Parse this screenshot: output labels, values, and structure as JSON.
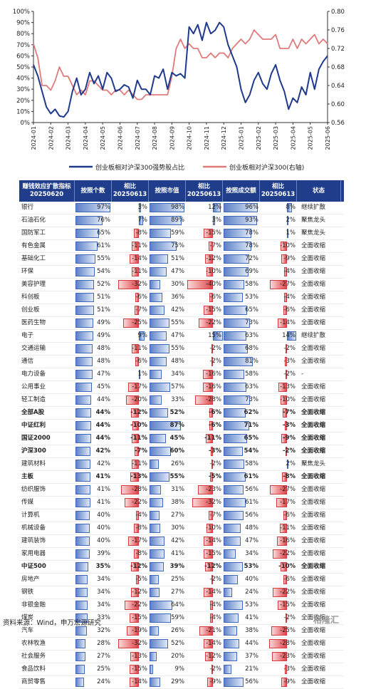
{
  "chart_data": {
    "type": "line",
    "x_tick_labels": [
      "2024-01",
      "2024-02",
      "2024-03",
      "2024-04",
      "2024-05",
      "2024-06",
      "2024-07",
      "2024-08",
      "2024-09",
      "2024-10",
      "2024-11",
      "2024-12",
      "2025-01",
      "2025-02",
      "2025-03",
      "2025-04",
      "2025-05",
      "2025-06"
    ],
    "left_axis": {
      "ticks": [
        "0%",
        "10%",
        "20%",
        "30%",
        "40%",
        "50%",
        "60%",
        "70%",
        "80%",
        "90%",
        "100%"
      ],
      "ylim": [
        0,
        100
      ]
    },
    "right_axis": {
      "ticks": [
        "0.56",
        "0.60",
        "0.64",
        "0.68",
        "0.72",
        "0.76",
        "0.80"
      ],
      "ylim": [
        0.56,
        0.8
      ]
    },
    "series": [
      {
        "name": "创业板相对沪深300强势股占比",
        "axis": "left",
        "color": "#1f3a8c",
        "x": [
          0,
          0.25,
          0.5,
          0.75,
          1,
          1.25,
          1.5,
          1.75,
          2,
          2.25,
          2.5,
          2.75,
          3,
          3.25,
          3.5,
          3.75,
          4,
          4.25,
          4.5,
          4.75,
          5,
          5.25,
          5.5,
          5.75,
          6,
          6.25,
          6.5,
          6.75,
          7,
          7.25,
          7.5,
          7.75,
          8,
          8.25,
          8.5,
          8.75,
          9,
          9.25,
          9.5,
          9.75,
          10,
          10.25,
          10.5,
          10.75,
          11,
          11.25,
          11.5,
          11.75,
          12,
          12.25,
          12.5,
          12.75,
          13,
          13.25,
          13.5,
          13.75,
          14,
          14.25,
          14.5,
          14.75,
          15,
          15.25,
          15.5,
          15.75,
          16,
          16.25,
          16.5,
          16.75,
          17
        ],
        "y": [
          52,
          42,
          28,
          14,
          8,
          12,
          6,
          5,
          10,
          28,
          40,
          25,
          30,
          45,
          35,
          42,
          30,
          45,
          40,
          28,
          30,
          34,
          32,
          22,
          38,
          30,
          30,
          25,
          42,
          40,
          48,
          30,
          45,
          42,
          44,
          40,
          86,
          80,
          88,
          74,
          90,
          80,
          83,
          90,
          86,
          70,
          60,
          50,
          30,
          18,
          25,
          38,
          45,
          35,
          30,
          44,
          52,
          38,
          28,
          12,
          22,
          18,
          32,
          25,
          45,
          30,
          48,
          55,
          60
        ]
      },
      {
        "name": "创业板相对沪深300(右轴)",
        "axis": "right",
        "color": "#e07b7b",
        "x": [
          0,
          0.25,
          0.5,
          0.75,
          1,
          1.25,
          1.5,
          1.75,
          2,
          2.25,
          2.5,
          2.75,
          3,
          3.25,
          3.5,
          3.75,
          4,
          4.25,
          4.5,
          4.75,
          5,
          5.25,
          5.5,
          5.75,
          6,
          6.25,
          6.5,
          6.75,
          7,
          7.25,
          7.5,
          7.75,
          8,
          8.25,
          8.5,
          8.75,
          9,
          9.25,
          9.5,
          9.75,
          10,
          10.25,
          10.5,
          10.75,
          11,
          11.25,
          11.5,
          11.75,
          12,
          12.25,
          12.5,
          12.75,
          13,
          13.25,
          13.5,
          13.75,
          14,
          14.25,
          14.5,
          14.75,
          15,
          15.25,
          15.5,
          15.75,
          16,
          16.25,
          16.5,
          16.75,
          17
        ],
        "y": [
          0.73,
          0.7,
          0.64,
          0.64,
          0.63,
          0.65,
          0.68,
          0.66,
          0.66,
          0.64,
          0.62,
          0.63,
          0.62,
          0.65,
          0.65,
          0.64,
          0.63,
          0.63,
          0.62,
          0.63,
          0.63,
          0.62,
          0.63,
          0.62,
          0.61,
          0.61,
          0.62,
          0.62,
          0.62,
          0.62,
          0.62,
          0.62,
          0.66,
          0.72,
          0.74,
          0.72,
          0.73,
          0.72,
          0.72,
          0.7,
          0.7,
          0.71,
          0.7,
          0.71,
          0.71,
          0.7,
          0.72,
          0.73,
          0.74,
          0.73,
          0.74,
          0.76,
          0.75,
          0.74,
          0.74,
          0.74,
          0.75,
          0.72,
          0.72,
          0.72,
          0.74,
          0.72,
          0.74,
          0.73,
          0.74,
          0.75,
          0.73,
          0.74,
          0.73
        ]
      }
    ]
  },
  "table": {
    "headers": [
      "赚钱效应扩散指标\n20250620",
      "按照个数",
      "相比\n20250613",
      "按照市值",
      "相比\n20250613",
      "按照成交额",
      "相比\n20250613",
      "状态"
    ],
    "rows": [
      {
        "name": "银行",
        "bold": false,
        "a": 97,
        "a_txt": "97%",
        "ad": 3,
        "ad_txt": "3%",
        "b": 98,
        "b_txt": "98%",
        "bd": 12,
        "bd_txt": "12%",
        "c": 96,
        "c_txt": "96%",
        "cd": 8,
        "cd_txt": "8%",
        "status": "继续扩散"
      },
      {
        "name": "石油石化",
        "bold": false,
        "a": 76,
        "a_txt": "76%",
        "ad": 7,
        "ad_txt": "7%",
        "b": 89,
        "b_txt": "89%",
        "bd": 3,
        "bd_txt": "3%",
        "c": 93,
        "c_txt": "93%",
        "cd": 2,
        "cd_txt": "2%",
        "status": "聚焦龙头"
      },
      {
        "name": "国防军工",
        "bold": false,
        "a": 65,
        "a_txt": "65%",
        "ad": -8,
        "ad_txt": "-8%",
        "b": 59,
        "b_txt": "59%",
        "bd": -15,
        "bd_txt": "-15%",
        "c": 78,
        "c_txt": "78%",
        "cd": 1,
        "cd_txt": "1%",
        "status": "聚焦龙头"
      },
      {
        "name": "有色金属",
        "bold": false,
        "a": 61,
        "a_txt": "61%",
        "ad": -11,
        "ad_txt": "-11%",
        "b": 75,
        "b_txt": "75%",
        "bd": -7,
        "bd_txt": "-7%",
        "c": 78,
        "c_txt": "78%",
        "cd": -10,
        "cd_txt": "-10%",
        "status": "全面收缩"
      },
      {
        "name": "基础化工",
        "bold": false,
        "a": 55,
        "a_txt": "55%",
        "ad": -14,
        "ad_txt": "-14%",
        "b": 51,
        "b_txt": "51%",
        "bd": -12,
        "bd_txt": "-12%",
        "c": 72,
        "c_txt": "72%",
        "cd": -9,
        "cd_txt": "-9%",
        "status": "全面收缩"
      },
      {
        "name": "环保",
        "bold": false,
        "a": 54,
        "a_txt": "54%",
        "ad": -11,
        "ad_txt": "-11%",
        "b": 47,
        "b_txt": "47%",
        "bd": -10,
        "bd_txt": "-10%",
        "c": 69,
        "c_txt": "69%",
        "cd": -4,
        "cd_txt": "-4%",
        "status": "全面收缩"
      },
      {
        "name": "美容护理",
        "bold": false,
        "a": 52,
        "a_txt": "52%",
        "ad": -32,
        "ad_txt": "-32%",
        "b": 30,
        "b_txt": "30%",
        "bd": -40,
        "bd_txt": "-40%",
        "c": 58,
        "c_txt": "58%",
        "cd": -27,
        "cd_txt": "-27%",
        "status": "全面收缩"
      },
      {
        "name": "科创板",
        "bold": false,
        "a": 51,
        "a_txt": "51%",
        "ad": -6,
        "ad_txt": "-6%",
        "b": 36,
        "b_txt": "36%",
        "bd": -6,
        "bd_txt": "-6%",
        "c": 53,
        "c_txt": "53%",
        "cd": -4,
        "cd_txt": "-4%",
        "status": "全面收缩"
      },
      {
        "name": "创业板",
        "bold": false,
        "a": 51,
        "a_txt": "51%",
        "ad": -7,
        "ad_txt": "-7%",
        "b": 42,
        "b_txt": "42%",
        "bd": -15,
        "bd_txt": "-15%",
        "c": 65,
        "c_txt": "65%",
        "cd": -6,
        "cd_txt": "-6%",
        "status": "全面收缩"
      },
      {
        "name": "医药生物",
        "bold": false,
        "a": 49,
        "a_txt": "49%",
        "ad": -25,
        "ad_txt": "-25%",
        "b": 55,
        "b_txt": "55%",
        "bd": -22,
        "bd_txt": "-22%",
        "c": 73,
        "c_txt": "73%",
        "cd": -14,
        "cd_txt": "-14%",
        "status": "全面收缩"
      },
      {
        "name": "电子",
        "bold": false,
        "a": 49,
        "a_txt": "49%",
        "ad": 9,
        "ad_txt": "9%",
        "b": 47,
        "b_txt": "47%",
        "bd": 15,
        "bd_txt": "15%",
        "c": 63,
        "c_txt": "63%",
        "cd": 14,
        "cd_txt": "14%",
        "status": "继续扩散"
      },
      {
        "name": "交通运输",
        "bold": false,
        "a": 48,
        "a_txt": "48%",
        "ad": -11,
        "ad_txt": "-11%",
        "b": 55,
        "b_txt": "55%",
        "bd": -2,
        "bd_txt": "-2%",
        "c": 68,
        "c_txt": "68%",
        "cd": -2,
        "cd_txt": "-2%",
        "status": "全面收缩"
      },
      {
        "name": "通信",
        "bold": false,
        "a": 48,
        "a_txt": "48%",
        "ad": -6,
        "ad_txt": "-6%",
        "b": 48,
        "b_txt": "48%",
        "bd": -2,
        "bd_txt": "-2%",
        "c": 81,
        "c_txt": "81%",
        "cd": -3,
        "cd_txt": "-3%",
        "status": "全面收缩"
      },
      {
        "name": "电力设备",
        "bold": false,
        "a": 47,
        "a_txt": "47%",
        "ad": 1,
        "ad_txt": "1%",
        "b": 34,
        "b_txt": "34%",
        "bd": -16,
        "bd_txt": "-16%",
        "c": 58,
        "c_txt": "58%",
        "cd": -2,
        "cd_txt": "-2%",
        "status": "-"
      },
      {
        "name": "公用事业",
        "bold": false,
        "a": 45,
        "a_txt": "45%",
        "ad": -17,
        "ad_txt": "-17%",
        "b": 57,
        "b_txt": "57%",
        "bd": -16,
        "bd_txt": "-16%",
        "c": 63,
        "c_txt": "63%",
        "cd": -13,
        "cd_txt": "-13%",
        "status": "全面收缩"
      },
      {
        "name": "轻工制造",
        "bold": false,
        "a": 44,
        "a_txt": "44%",
        "ad": -20,
        "ad_txt": "-20%",
        "b": 33,
        "b_txt": "33%",
        "bd": -28,
        "bd_txt": "-28%",
        "c": 73,
        "c_txt": "73%",
        "cd": -10,
        "cd_txt": "-10%",
        "status": "全面收缩"
      },
      {
        "name": "全部A股",
        "bold": true,
        "a": 44,
        "a_txt": "44%",
        "ad": -12,
        "ad_txt": "-12%",
        "b": 52,
        "b_txt": "52%",
        "bd": -6,
        "bd_txt": "-6%",
        "c": 62,
        "c_txt": "62%",
        "cd": -7,
        "cd_txt": "-7%",
        "status": "全面收缩"
      },
      {
        "name": "中证红利",
        "bold": true,
        "a": 44,
        "a_txt": "44%",
        "ad": -10,
        "ad_txt": "-10%",
        "b": 87,
        "b_txt": "87%",
        "bd": -6,
        "bd_txt": "-6%",
        "c": 71,
        "c_txt": "71%",
        "cd": -3,
        "cd_txt": "-3%",
        "status": "全面收缩"
      },
      {
        "name": "国证2000",
        "bold": true,
        "a": 44,
        "a_txt": "44%",
        "ad": -11,
        "ad_txt": "-11%",
        "b": 45,
        "b_txt": "45%",
        "bd": -11,
        "bd_txt": "-11%",
        "c": 65,
        "c_txt": "65%",
        "cd": -9,
        "cd_txt": "-9%",
        "status": "全面收缩"
      },
      {
        "name": "沪深300",
        "bold": true,
        "a": 42,
        "a_txt": "42%",
        "ad": -7,
        "ad_txt": "-7%",
        "b": 60,
        "b_txt": "60%",
        "bd": -3,
        "bd_txt": "-3%",
        "c": 54,
        "c_txt": "54%",
        "cd": -2,
        "cd_txt": "-2%",
        "status": "全面收缩"
      },
      {
        "name": "建筑材料",
        "bold": false,
        "a": 42,
        "a_txt": "42%",
        "ad": -11,
        "ad_txt": "-11%",
        "b": 26,
        "b_txt": "26%",
        "bd": -2,
        "bd_txt": "-2%",
        "c": 58,
        "c_txt": "58%",
        "cd": 2,
        "cd_txt": "2%",
        "status": "聚焦龙头"
      },
      {
        "name": "主板",
        "bold": true,
        "a": 41,
        "a_txt": "41%",
        "ad": -13,
        "ad_txt": "-13%",
        "b": 55,
        "b_txt": "55%",
        "bd": -5,
        "bd_txt": "-5%",
        "c": 61,
        "c_txt": "61%",
        "cd": -8,
        "cd_txt": "-8%",
        "status": "全面收缩"
      },
      {
        "name": "纺织服饰",
        "bold": false,
        "a": 41,
        "a_txt": "41%",
        "ad": -28,
        "ad_txt": "-28%",
        "b": 31,
        "b_txt": "31%",
        "bd": -23,
        "bd_txt": "-23%",
        "c": 56,
        "c_txt": "56%",
        "cd": -27,
        "cd_txt": "-27%",
        "status": "全面收缩"
      },
      {
        "name": "传媒",
        "bold": false,
        "a": 41,
        "a_txt": "41%",
        "ad": -22,
        "ad_txt": "-22%",
        "b": 38,
        "b_txt": "38%",
        "bd": -32,
        "bd_txt": "-32%",
        "c": 61,
        "c_txt": "61%",
        "cd": -17,
        "cd_txt": "-17%",
        "status": "全面收缩"
      },
      {
        "name": "计算机",
        "bold": false,
        "a": 40,
        "a_txt": "40%",
        "ad": -4,
        "ad_txt": "-4%",
        "b": 27,
        "b_txt": "27%",
        "bd": -7,
        "bd_txt": "-7%",
        "c": 56,
        "c_txt": "56%",
        "cd": -6,
        "cd_txt": "-6%",
        "status": "全面收缩"
      },
      {
        "name": "机械设备",
        "bold": false,
        "a": 40,
        "a_txt": "40%",
        "ad": -8,
        "ad_txt": "-8%",
        "b": 30,
        "b_txt": "30%",
        "bd": -10,
        "bd_txt": "-10%",
        "c": 48,
        "c_txt": "48%",
        "cd": -11,
        "cd_txt": "-11%",
        "status": "全面收缩"
      },
      {
        "name": "建筑装饰",
        "bold": false,
        "a": 40,
        "a_txt": "40%",
        "ad": -17,
        "ad_txt": "-17%",
        "b": 42,
        "b_txt": "42%",
        "bd": -14,
        "bd_txt": "-14%",
        "c": 47,
        "c_txt": "47%",
        "cd": -16,
        "cd_txt": "-16%",
        "status": "全面收缩"
      },
      {
        "name": "家用电器",
        "bold": false,
        "a": 39,
        "a_txt": "39%",
        "ad": -8,
        "ad_txt": "-8%",
        "b": 41,
        "b_txt": "41%",
        "bd": -15,
        "bd_txt": "-15%",
        "c": 34,
        "c_txt": "34%",
        "cd": -22,
        "cd_txt": "-22%",
        "status": "全面收缩"
      },
      {
        "name": "中证500",
        "bold": true,
        "a": 35,
        "a_txt": "35%",
        "ad": -12,
        "ad_txt": "-12%",
        "b": 39,
        "b_txt": "39%",
        "bd": -12,
        "bd_txt": "-12%",
        "c": 53,
        "c_txt": "53%",
        "cd": -10,
        "cd_txt": "-10%",
        "status": "全面收缩"
      },
      {
        "name": "房地产",
        "bold": false,
        "a": 34,
        "a_txt": "34%",
        "ad": -5,
        "ad_txt": "-5%",
        "b": 25,
        "b_txt": "25%",
        "bd": -2,
        "bd_txt": "-2%",
        "c": 40,
        "c_txt": "40%",
        "cd": -6,
        "cd_txt": "-6%",
        "status": "全面收缩"
      },
      {
        "name": "钢铁",
        "bold": false,
        "a": 34,
        "a_txt": "34%",
        "ad": -12,
        "ad_txt": "-12%",
        "b": 27,
        "b_txt": "27%",
        "bd": -14,
        "bd_txt": "-14%",
        "c": 24,
        "c_txt": "24%",
        "cd": -22,
        "cd_txt": "-22%",
        "status": "全面收缩"
      },
      {
        "name": "非银金融",
        "bold": false,
        "a": 34,
        "a_txt": "34%",
        "ad": -22,
        "ad_txt": "-22%",
        "b": 64,
        "b_txt": "64%",
        "bd": -4,
        "bd_txt": "-4%",
        "c": 53,
        "c_txt": "53%",
        "cd": -15,
        "cd_txt": "-15%",
        "status": "全面收缩"
      },
      {
        "name": "煤炭",
        "bold": false,
        "a": 33,
        "a_txt": "33%",
        "ad": -15,
        "ad_txt": "-15%",
        "b": 59,
        "b_txt": "59%",
        "bd": -4,
        "bd_txt": "-4%",
        "c": 41,
        "c_txt": "41%",
        "cd": -2,
        "cd_txt": "-2%",
        "status": "全面收缩"
      },
      {
        "name": "汽车",
        "bold": false,
        "a": 32,
        "a_txt": "32%",
        "ad": -19,
        "ad_txt": "-19%",
        "b": 26,
        "b_txt": "26%",
        "bd": -21,
        "bd_txt": "-21%",
        "c": 38,
        "c_txt": "38%",
        "cd": -25,
        "cd_txt": "-25%",
        "status": "全面收缩"
      },
      {
        "name": "农林牧渔",
        "bold": false,
        "a": 28,
        "a_txt": "28%",
        "ad": -32,
        "ad_txt": "-32%",
        "b": 52,
        "b_txt": "52%",
        "bd": -14,
        "bd_txt": "-14%",
        "c": 44,
        "c_txt": "44%",
        "cd": -28,
        "cd_txt": "-28%",
        "status": "全面收缩"
      },
      {
        "name": "社会服务",
        "bold": false,
        "a": 27,
        "a_txt": "27%",
        "ad": -13,
        "ad_txt": "-13%",
        "b": 20,
        "b_txt": "20%",
        "bd": -12,
        "bd_txt": "-12%",
        "c": 37,
        "c_txt": "37%",
        "cd": -23,
        "cd_txt": "-23%",
        "status": "全面收缩"
      },
      {
        "name": "食品饮料",
        "bold": false,
        "a": 25,
        "a_txt": "25%",
        "ad": -15,
        "ad_txt": "-15%",
        "b": 9,
        "b_txt": "9%",
        "bd": -2,
        "bd_txt": "-2%",
        "c": 21,
        "c_txt": "21%",
        "cd": -3,
        "cd_txt": "-3%",
        "status": "全面收缩"
      },
      {
        "name": "商贸零售",
        "bold": false,
        "a": 24,
        "a_txt": "24%",
        "ad": -14,
        "ad_txt": "-14%",
        "b": 29,
        "b_txt": "29%",
        "bd": -9,
        "bd_txt": "-9%",
        "c": 56,
        "c_txt": "56%",
        "cd": -9,
        "cd_txt": "-9%",
        "status": "全面收缩"
      }
    ]
  },
  "source": "资料来源：Wind，申万宏源研究",
  "watermark": "格隆汇",
  "colors": {
    "header_bg": "#1f3d8a",
    "pos_bar": "#5c82c8",
    "neg_bar": "#e0464a",
    "line_left": "#1f3a8c",
    "line_right": "#e07b7b"
  }
}
